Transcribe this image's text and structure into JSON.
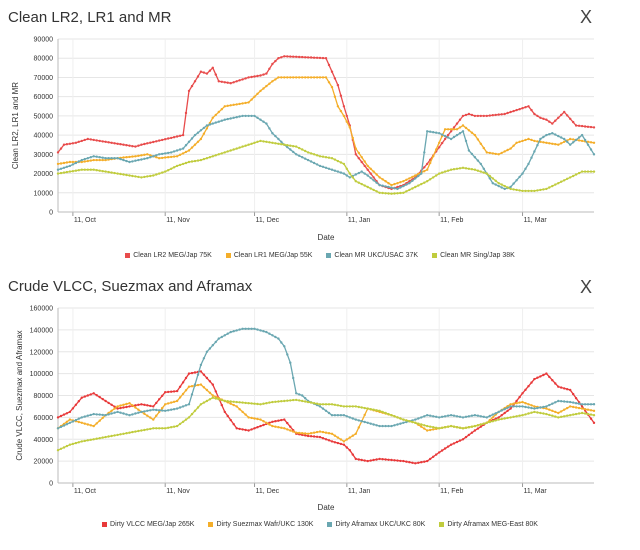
{
  "chart_data": [
    {
      "type": "line",
      "title": "Clean LR2, LR1 and MR",
      "xlabel": "Date",
      "ylabel": "Clean LR2, LR1 and MR",
      "ylim": [
        0,
        90000
      ],
      "yticks": [
        0,
        10000,
        20000,
        30000,
        40000,
        50000,
        60000,
        70000,
        80000,
        90000
      ],
      "xlim": [
        0,
        180
      ],
      "xticks": [
        {
          "x": 5,
          "label": "11, Oct"
        },
        {
          "x": 36,
          "label": "11, Nov"
        },
        {
          "x": 66,
          "label": "11, Dec"
        },
        {
          "x": 97,
          "label": "11, Jan"
        },
        {
          "x": 128,
          "label": "11, Feb"
        },
        {
          "x": 156,
          "label": "11, Mar"
        }
      ],
      "series": [
        {
          "name": "Clean LR2 MEG/Jap 75K",
          "color": "#e84c4c",
          "x": [
            0,
            2,
            6,
            10,
            14,
            18,
            22,
            26,
            28,
            42,
            44,
            46,
            48,
            50,
            52,
            54,
            58,
            64,
            68,
            70,
            72,
            74,
            76,
            90,
            92,
            94,
            96,
            98,
            100,
            104,
            108,
            112,
            116,
            120,
            124,
            130,
            134,
            136,
            138,
            140,
            144,
            150,
            154,
            158,
            160,
            162,
            164,
            166,
            168,
            170,
            174,
            180
          ],
          "y": [
            31000,
            35000,
            36000,
            38000,
            37000,
            36000,
            35000,
            34000,
            35000,
            40000,
            63000,
            68000,
            73000,
            72000,
            75000,
            68000,
            67000,
            70000,
            71000,
            72000,
            77000,
            80000,
            81000,
            80000,
            73000,
            66000,
            55000,
            45000,
            30000,
            22000,
            14000,
            12000,
            14000,
            18000,
            25000,
            38000,
            46000,
            50000,
            51000,
            50000,
            50000,
            51000,
            53000,
            55000,
            51000,
            49000,
            48000,
            46000,
            49000,
            52000,
            45000,
            44000
          ]
        },
        {
          "name": "Clean LR1 MEG/Jap 55K",
          "color": "#f4ae2a",
          "x": [
            0,
            4,
            8,
            12,
            16,
            20,
            26,
            30,
            34,
            40,
            44,
            48,
            52,
            56,
            60,
            64,
            68,
            72,
            74,
            80,
            86,
            90,
            92,
            94,
            96,
            98,
            100,
            104,
            108,
            112,
            116,
            120,
            124,
            130,
            134,
            136,
            140,
            144,
            148,
            152,
            154,
            158,
            160,
            164,
            168,
            172,
            176,
            180
          ],
          "y": [
            25000,
            26000,
            26000,
            27000,
            27000,
            28000,
            29000,
            30000,
            28000,
            29000,
            32000,
            38000,
            49000,
            55000,
            56000,
            57000,
            63000,
            68000,
            70000,
            70000,
            70000,
            70000,
            65000,
            55000,
            50000,
            44000,
            33000,
            24000,
            18000,
            14000,
            16000,
            19000,
            22000,
            43000,
            43000,
            45000,
            40000,
            31000,
            30000,
            33000,
            36000,
            38000,
            37000,
            36000,
            35000,
            38000,
            37000,
            36000
          ]
        },
        {
          "name": "Clean MR UKC/USAC 37K",
          "color": "#6aa7b1",
          "x": [
            0,
            4,
            8,
            12,
            16,
            20,
            24,
            30,
            34,
            38,
            42,
            46,
            50,
            56,
            62,
            66,
            70,
            72,
            76,
            80,
            84,
            88,
            92,
            96,
            98,
            102,
            104,
            108,
            114,
            118,
            122,
            124,
            128,
            132,
            136,
            138,
            142,
            146,
            150,
            152,
            156,
            158,
            162,
            164,
            166,
            170,
            172,
            176,
            180
          ],
          "y": [
            22000,
            24000,
            27000,
            29000,
            28000,
            28000,
            26000,
            28000,
            30000,
            31000,
            33000,
            40000,
            45000,
            48000,
            50000,
            50000,
            46000,
            41000,
            35000,
            30000,
            27000,
            24000,
            22000,
            20000,
            18000,
            21000,
            19000,
            14000,
            12000,
            15000,
            20000,
            42000,
            41000,
            38000,
            42000,
            32000,
            25000,
            15000,
            12000,
            13000,
            20000,
            25000,
            38000,
            40000,
            41000,
            38000,
            35000,
            40000,
            30000
          ]
        },
        {
          "name": "Clean MR Sing/Jap 38K",
          "color": "#c0cc3e",
          "x": [
            0,
            4,
            8,
            12,
            16,
            20,
            24,
            28,
            32,
            36,
            40,
            44,
            48,
            52,
            56,
            60,
            64,
            68,
            72,
            76,
            80,
            84,
            88,
            92,
            96,
            98,
            100,
            104,
            108,
            112,
            116,
            120,
            124,
            128,
            132,
            136,
            140,
            144,
            148,
            152,
            156,
            160,
            164,
            168,
            172,
            176,
            180
          ],
          "y": [
            20000,
            21000,
            22000,
            22000,
            21000,
            20000,
            19000,
            18000,
            19000,
            21000,
            24000,
            26000,
            27000,
            29000,
            31000,
            33000,
            35000,
            37000,
            36000,
            35000,
            34000,
            31000,
            29000,
            28000,
            25000,
            20000,
            16000,
            13000,
            10000,
            9500,
            10000,
            13000,
            16000,
            20000,
            22000,
            23000,
            22000,
            20000,
            15000,
            12000,
            11000,
            11000,
            12000,
            15000,
            18000,
            21000,
            21000
          ]
        }
      ]
    },
    {
      "type": "line",
      "title": "Crude VLCC, Suezmax and Aframax",
      "xlabel": "Date",
      "ylabel": "Crude VLCC, Suezmax and Aframax",
      "ylim": [
        0,
        160000
      ],
      "yticks": [
        0,
        20000,
        40000,
        60000,
        80000,
        100000,
        120000,
        140000,
        160000
      ],
      "xlim": [
        0,
        180
      ],
      "xticks": [
        {
          "x": 5,
          "label": "11, Oct"
        },
        {
          "x": 36,
          "label": "11, Nov"
        },
        {
          "x": 66,
          "label": "11, Dec"
        },
        {
          "x": 97,
          "label": "11, Jan"
        },
        {
          "x": 128,
          "label": "11, Feb"
        },
        {
          "x": 156,
          "label": "11, Mar"
        }
      ],
      "series": [
        {
          "name": "Dirty VLCC MEG/Jap 265K",
          "color": "#e8393a",
          "x": [
            0,
            4,
            8,
            12,
            16,
            20,
            24,
            28,
            32,
            36,
            40,
            44,
            48,
            52,
            56,
            60,
            64,
            68,
            72,
            76,
            80,
            84,
            88,
            92,
            96,
            98,
            100,
            104,
            108,
            112,
            116,
            120,
            124,
            128,
            132,
            136,
            140,
            144,
            148,
            152,
            156,
            160,
            164,
            168,
            172,
            176,
            180
          ],
          "y": [
            60000,
            65000,
            78000,
            82000,
            75000,
            68000,
            70000,
            72000,
            70000,
            83000,
            84000,
            100000,
            102000,
            90000,
            65000,
            50000,
            48000,
            52000,
            56000,
            58000,
            45000,
            43000,
            42000,
            38000,
            35000,
            30000,
            22000,
            20000,
            22000,
            21000,
            20000,
            18000,
            20000,
            28000,
            35000,
            40000,
            48000,
            55000,
            60000,
            68000,
            82000,
            95000,
            100000,
            88000,
            85000,
            70000,
            55000
          ]
        },
        {
          "name": "Dirty Suezmax Wafr/UKC 130K",
          "color": "#f4ae2a",
          "x": [
            0,
            4,
            8,
            12,
            16,
            20,
            24,
            28,
            32,
            36,
            40,
            44,
            48,
            52,
            56,
            60,
            64,
            68,
            72,
            76,
            80,
            84,
            88,
            92,
            96,
            100,
            104,
            108,
            112,
            116,
            120,
            124,
            128,
            132,
            136,
            140,
            144,
            148,
            152,
            156,
            160,
            164,
            168,
            172,
            176,
            180
          ],
          "y": [
            50000,
            58000,
            55000,
            52000,
            62000,
            70000,
            73000,
            65000,
            58000,
            72000,
            75000,
            88000,
            90000,
            80000,
            75000,
            70000,
            60000,
            58000,
            52000,
            50000,
            46000,
            45000,
            47000,
            45000,
            38000,
            45000,
            68000,
            65000,
            62000,
            58000,
            55000,
            48000,
            50000,
            52000,
            50000,
            52000,
            55000,
            65000,
            72000,
            74000,
            70000,
            68000,
            64000,
            70000,
            68000,
            66000
          ]
        },
        {
          "name": "Dirty Aframax UKC/UKC 80K",
          "color": "#6aa7b1",
          "x": [
            0,
            4,
            8,
            12,
            16,
            20,
            24,
            28,
            32,
            36,
            40,
            44,
            46,
            48,
            50,
            54,
            58,
            62,
            66,
            70,
            74,
            76,
            78,
            80,
            82,
            84,
            88,
            92,
            96,
            100,
            104,
            108,
            112,
            116,
            120,
            124,
            128,
            132,
            136,
            140,
            144,
            148,
            152,
            156,
            160,
            164,
            168,
            172,
            176,
            180
          ],
          "y": [
            50000,
            55000,
            60000,
            63000,
            62000,
            65000,
            62000,
            65000,
            67000,
            66000,
            68000,
            72000,
            90000,
            108000,
            120000,
            132000,
            138000,
            141000,
            141000,
            138000,
            132000,
            125000,
            110000,
            82000,
            80000,
            75000,
            70000,
            62000,
            62000,
            58000,
            55000,
            52000,
            52000,
            55000,
            58000,
            62000,
            60000,
            62000,
            60000,
            62000,
            60000,
            65000,
            70000,
            70000,
            68000,
            70000,
            75000,
            74000,
            72000,
            72000
          ]
        },
        {
          "name": "Dirty Aframax MEG-East 80K",
          "color": "#c0cc3e",
          "x": [
            0,
            4,
            8,
            12,
            16,
            20,
            24,
            28,
            32,
            36,
            40,
            44,
            48,
            52,
            56,
            60,
            64,
            68,
            72,
            76,
            80,
            84,
            88,
            92,
            96,
            100,
            104,
            108,
            112,
            116,
            120,
            124,
            128,
            132,
            136,
            140,
            144,
            148,
            152,
            156,
            160,
            164,
            168,
            172,
            176,
            180
          ],
          "y": [
            30000,
            35000,
            38000,
            40000,
            42000,
            44000,
            46000,
            48000,
            50000,
            50000,
            52000,
            60000,
            72000,
            78000,
            75000,
            74000,
            73000,
            72000,
            74000,
            75000,
            76000,
            74000,
            72000,
            72000,
            70000,
            70000,
            68000,
            66000,
            62000,
            58000,
            55000,
            52000,
            50000,
            52000,
            50000,
            52000,
            55000,
            58000,
            60000,
            62000,
            65000,
            63000,
            60000,
            62000,
            64000,
            62000
          ]
        }
      ]
    }
  ],
  "panels": [
    {
      "title": "Clean LR2, LR1 and MR",
      "close_label": "X"
    },
    {
      "title": "Crude VLCC, Suezmax and Aframax",
      "close_label": "X"
    }
  ]
}
